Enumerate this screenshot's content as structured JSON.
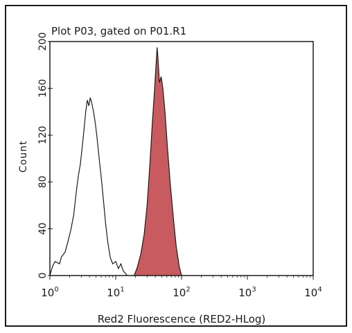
{
  "chart_data": {
    "type": "histogram",
    "title": "Plot P03, gated on P01.R1",
    "xlabel": "Red2 Fluorescence (RED2-HLog)",
    "ylabel": "Count",
    "x_scale": "log",
    "xlim": [
      1,
      10000
    ],
    "ylim": [
      0,
      200
    ],
    "x_ticks": [
      {
        "value": 1,
        "base": "10",
        "exp": "0"
      },
      {
        "value": 10,
        "base": "10",
        "exp": "1"
      },
      {
        "value": 100,
        "base": "10",
        "exp": "2"
      },
      {
        "value": 1000,
        "base": "10",
        "exp": "3"
      },
      {
        "value": 10000,
        "base": "10",
        "exp": "4"
      }
    ],
    "y_ticks": [
      0,
      40,
      80,
      120,
      160,
      200
    ],
    "series": [
      {
        "fill": "none",
        "stroke": "#1a1a1a",
        "points": [
          [
            1.0,
            0
          ],
          [
            1.1,
            8
          ],
          [
            1.2,
            12
          ],
          [
            1.4,
            10
          ],
          [
            1.5,
            16
          ],
          [
            1.7,
            20
          ],
          [
            1.9,
            30
          ],
          [
            2.1,
            40
          ],
          [
            2.3,
            52
          ],
          [
            2.5,
            70
          ],
          [
            2.7,
            85
          ],
          [
            2.9,
            95
          ],
          [
            3.1,
            110
          ],
          [
            3.3,
            125
          ],
          [
            3.5,
            140
          ],
          [
            3.7,
            150
          ],
          [
            3.9,
            145
          ],
          [
            4.1,
            152
          ],
          [
            4.3,
            148
          ],
          [
            4.6,
            140
          ],
          [
            4.9,
            130
          ],
          [
            5.2,
            118
          ],
          [
            5.6,
            100
          ],
          [
            6.0,
            85
          ],
          [
            6.5,
            65
          ],
          [
            7.0,
            45
          ],
          [
            7.6,
            28
          ],
          [
            8.3,
            15
          ],
          [
            9.0,
            10
          ],
          [
            10.0,
            12
          ],
          [
            11.0,
            6
          ],
          [
            12.0,
            10
          ],
          [
            13.0,
            4
          ],
          [
            15.0,
            0
          ]
        ]
      },
      {
        "fill": "#c85b60",
        "stroke": "#1a1a1a",
        "points": [
          [
            19.0,
            0
          ],
          [
            21.0,
            6
          ],
          [
            24.0,
            18
          ],
          [
            27.0,
            35
          ],
          [
            30.0,
            60
          ],
          [
            33.0,
            95
          ],
          [
            36.0,
            130
          ],
          [
            39.0,
            160
          ],
          [
            41.0,
            180
          ],
          [
            42.5,
            195
          ],
          [
            44.0,
            185
          ],
          [
            46.0,
            165
          ],
          [
            49.0,
            170
          ],
          [
            52.0,
            160
          ],
          [
            56.0,
            140
          ],
          [
            61.0,
            110
          ],
          [
            67.0,
            80
          ],
          [
            75.0,
            50
          ],
          [
            83.0,
            25
          ],
          [
            92.0,
            8
          ],
          [
            100.0,
            0
          ]
        ]
      }
    ]
  }
}
